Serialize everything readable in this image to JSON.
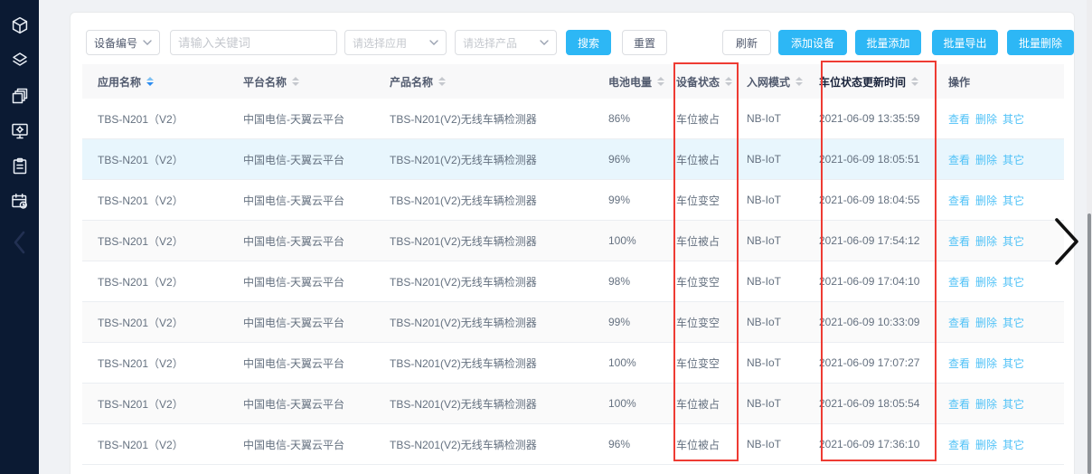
{
  "colors": {
    "accent": "#2db7f5",
    "link": "#50c2f7",
    "sidebar_bg": "#0b1a33",
    "annotation_red": "#ee3b33",
    "row_highlight": "#e8f6fd"
  },
  "sidebar": {
    "icons": [
      "cube-icon",
      "layers-icon",
      "copies-icon",
      "monitor-settings-icon",
      "clipboard-icon",
      "calendar-clock-icon"
    ],
    "collapse_icon": "chevron-left-icon"
  },
  "toolbar": {
    "field_select": {
      "value": "设备编号"
    },
    "keyword_input": {
      "placeholder": "请输入关键词",
      "value": ""
    },
    "app_select": {
      "placeholder": "请选择应用"
    },
    "product_select": {
      "placeholder": "请选择产品"
    },
    "search_label": "搜索",
    "reset_label": "重置",
    "refresh_label": "刷新",
    "add_device_label": "添加设备",
    "batch_add_label": "批量添加",
    "batch_export_label": "批量导出",
    "batch_delete_label": "批量删除"
  },
  "table": {
    "columns": [
      {
        "label": "应用名称",
        "sortable": true,
        "sort_active": true
      },
      {
        "label": "平台名称",
        "sortable": true
      },
      {
        "label": "产品名称",
        "sortable": true
      },
      {
        "label": "电池电量",
        "sortable": true
      },
      {
        "label": "设备状态",
        "sortable": true
      },
      {
        "label": "入网模式",
        "sortable": true
      },
      {
        "label": "车位状态更新时间",
        "sortable": true,
        "emphasis": true
      },
      {
        "label": "操作",
        "sortable": false
      }
    ],
    "action_labels": [
      "查看",
      "删除",
      "其它"
    ],
    "rows": [
      {
        "app": "TBS-N201（V2）",
        "platform": "中国电信-天翼云平台",
        "product": "TBS-N201(V2)无线车辆检测器",
        "battery": "86%",
        "status": "车位被占",
        "mode": "NB-IoT",
        "updated": "2021-06-09 13:35:59",
        "state": "plain"
      },
      {
        "app": "TBS-N201（V2）",
        "platform": "中国电信-天翼云平台",
        "product": "TBS-N201(V2)无线车辆检测器",
        "battery": "96%",
        "status": "车位被占",
        "mode": "NB-IoT",
        "updated": "2021-06-09 18:05:51",
        "state": "hover"
      },
      {
        "app": "TBS-N201（V2）",
        "platform": "中国电信-天翼云平台",
        "product": "TBS-N201(V2)无线车辆检测器",
        "battery": "99%",
        "status": "车位变空",
        "mode": "NB-IoT",
        "updated": "2021-06-09 18:04:55",
        "state": "plain"
      },
      {
        "app": "TBS-N201（V2）",
        "platform": "中国电信-天翼云平台",
        "product": "TBS-N201(V2)无线车辆检测器",
        "battery": "100%",
        "status": "车位被占",
        "mode": "NB-IoT",
        "updated": "2021-06-09 17:54:12",
        "state": "striped"
      },
      {
        "app": "TBS-N201（V2）",
        "platform": "中国电信-天翼云平台",
        "product": "TBS-N201(V2)无线车辆检测器",
        "battery": "98%",
        "status": "车位变空",
        "mode": "NB-IoT",
        "updated": "2021-06-09 17:04:10",
        "state": "plain"
      },
      {
        "app": "TBS-N201（V2）",
        "platform": "中国电信-天翼云平台",
        "product": "TBS-N201(V2)无线车辆检测器",
        "battery": "99%",
        "status": "车位变空",
        "mode": "NB-IoT",
        "updated": "2021-06-09 10:33:09",
        "state": "striped"
      },
      {
        "app": "TBS-N201（V2）",
        "platform": "中国电信-天翼云平台",
        "product": "TBS-N201(V2)无线车辆检测器",
        "battery": "100%",
        "status": "车位变空",
        "mode": "NB-IoT",
        "updated": "2021-06-09 17:07:27",
        "state": "plain"
      },
      {
        "app": "TBS-N201（V2）",
        "platform": "中国电信-天翼云平台",
        "product": "TBS-N201(V2)无线车辆检测器",
        "battery": "100%",
        "status": "车位被占",
        "mode": "NB-IoT",
        "updated": "2021-06-09 18:05:54",
        "state": "striped"
      },
      {
        "app": "TBS-N201（V2）",
        "platform": "中国电信-天翼云平台",
        "product": "TBS-N201(V2)无线车辆检测器",
        "battery": "96%",
        "status": "车位被占",
        "mode": "NB-IoT",
        "updated": "2021-06-09 17:36:10",
        "state": "plain"
      }
    ]
  },
  "annotations": {
    "device_status_box": "red-box-device-status",
    "updated_time_box": "red-box-updated-time"
  }
}
